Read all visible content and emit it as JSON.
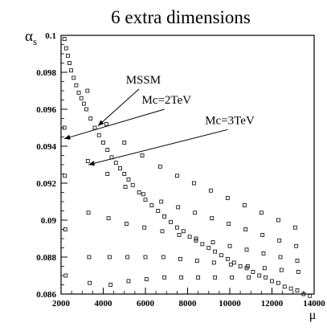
{
  "chart_data": {
    "type": "scatter",
    "title": "6 extra dimensions",
    "xlabel": "μ",
    "ylabel": "α",
    "ylabel_subscript": "s",
    "xlim": [
      2000,
      14000
    ],
    "ylim": [
      0.086,
      0.1
    ],
    "x_ticks": [
      "2000",
      "4000",
      "6000",
      "8000",
      "10000",
      "12000",
      "14000"
    ],
    "y_ticks": [
      "0.086",
      "0.088",
      "0.09",
      "0.092",
      "0.094",
      "0.096",
      "0.098",
      "0.1"
    ],
    "grid": false,
    "marker": "open-square",
    "series": [
      {
        "name": "MSSM",
        "values": [
          [
            2160,
            0.0998
          ],
          [
            2240,
            0.0993
          ],
          [
            2320,
            0.0989
          ],
          [
            2400,
            0.0985
          ],
          [
            2480,
            0.0981
          ],
          [
            2600,
            0.0977
          ],
          [
            2720,
            0.0973
          ],
          [
            2840,
            0.0969
          ],
          [
            2960,
            0.0966
          ],
          [
            3080,
            0.0963
          ],
          [
            3200,
            0.096
          ],
          [
            3400,
            0.0955
          ],
          [
            3600,
            0.095
          ],
          [
            3800,
            0.0946
          ],
          [
            4000,
            0.0942
          ],
          [
            4200,
            0.0938
          ],
          [
            4400,
            0.0934
          ],
          [
            4600,
            0.0931
          ],
          [
            4800,
            0.0928
          ],
          [
            5000,
            0.0925
          ],
          [
            5200,
            0.0922
          ],
          [
            5400,
            0.0919
          ],
          [
            5700,
            0.0915
          ],
          [
            6000,
            0.0911
          ],
          [
            6300,
            0.0908
          ],
          [
            6600,
            0.0905
          ],
          [
            6900,
            0.0902
          ],
          [
            7200,
            0.0899
          ],
          [
            7500,
            0.0896
          ],
          [
            7800,
            0.0894
          ],
          [
            8100,
            0.0891
          ],
          [
            8400,
            0.0889
          ],
          [
            8700,
            0.0887
          ],
          [
            9000,
            0.0885
          ],
          [
            9300,
            0.0883
          ],
          [
            9600,
            0.0881
          ],
          [
            9900,
            0.0879
          ],
          [
            10200,
            0.0877
          ],
          [
            10500,
            0.0875
          ],
          [
            10800,
            0.0874
          ],
          [
            11100,
            0.0872
          ],
          [
            11400,
            0.087
          ],
          [
            11700,
            0.0869
          ],
          [
            12000,
            0.0867
          ],
          [
            12300,
            0.0866
          ],
          [
            12600,
            0.0864
          ],
          [
            12900,
            0.0863
          ],
          [
            13200,
            0.0862
          ],
          [
            13500,
            0.086
          ],
          [
            13800,
            0.0859
          ]
        ]
      },
      {
        "name": "",
        "values": [
          [
            2160,
            0.095
          ],
          [
            2180,
            0.0924
          ],
          [
            2200,
            0.0895
          ],
          [
            2220,
            0.087
          ],
          [
            3250,
            0.097
          ],
          [
            3270,
            0.0932
          ],
          [
            3300,
            0.0904
          ],
          [
            3330,
            0.088
          ],
          [
            3360,
            0.0866
          ],
          [
            4150,
            0.0952
          ],
          [
            4200,
            0.0925
          ],
          [
            4250,
            0.0901
          ],
          [
            4300,
            0.088
          ],
          [
            4350,
            0.0865
          ],
          [
            5000,
            0.0942
          ],
          [
            5050,
            0.0918
          ],
          [
            5100,
            0.0898
          ],
          [
            5150,
            0.088
          ],
          [
            5200,
            0.0867
          ],
          [
            5850,
            0.0935
          ],
          [
            5900,
            0.0914
          ],
          [
            5950,
            0.0896
          ],
          [
            6000,
            0.088
          ],
          [
            6050,
            0.0868
          ],
          [
            6700,
            0.0929
          ],
          [
            6750,
            0.091
          ],
          [
            6800,
            0.0894
          ],
          [
            6850,
            0.088
          ],
          [
            6900,
            0.0869
          ],
          [
            7500,
            0.0924
          ],
          [
            7550,
            0.0907
          ],
          [
            7600,
            0.0892
          ],
          [
            7650,
            0.0879
          ],
          [
            7700,
            0.0869
          ],
          [
            8300,
            0.092
          ],
          [
            8350,
            0.0904
          ],
          [
            8400,
            0.089
          ],
          [
            8450,
            0.0878
          ],
          [
            8500,
            0.0869
          ],
          [
            9100,
            0.0916
          ],
          [
            9150,
            0.0901
          ],
          [
            9200,
            0.0888
          ],
          [
            9250,
            0.0877
          ],
          [
            9300,
            0.0869
          ],
          [
            9900,
            0.0912
          ],
          [
            9950,
            0.0898
          ],
          [
            10000,
            0.0886
          ],
          [
            10050,
            0.0876
          ],
          [
            10100,
            0.0869
          ],
          [
            10700,
            0.0908
          ],
          [
            10750,
            0.0895
          ],
          [
            10800,
            0.0884
          ],
          [
            10850,
            0.0875
          ],
          [
            10900,
            0.0869
          ],
          [
            11500,
            0.0904
          ],
          [
            11550,
            0.0892
          ],
          [
            11600,
            0.0882
          ],
          [
            11650,
            0.0874
          ],
          [
            12300,
            0.09
          ],
          [
            12350,
            0.0889
          ],
          [
            12400,
            0.088
          ],
          [
            12450,
            0.0873
          ],
          [
            13100,
            0.0896
          ],
          [
            13150,
            0.0886
          ],
          [
            13200,
            0.0878
          ],
          [
            13250,
            0.0872
          ]
        ]
      }
    ],
    "annotations": [
      {
        "text": "MSSM",
        "text_at": [
          5900,
          0.0974
        ],
        "arrow_from": [
          5700,
          0.0971
        ],
        "arrow_to": [
          3750,
          0.0951
        ]
      },
      {
        "text": "Mc=2TeV",
        "text_at": [
          7000,
          0.0963
        ],
        "arrow_from": [
          6900,
          0.096
        ],
        "arrow_to": [
          2150,
          0.0944
        ]
      },
      {
        "text": "Mc=3TeV",
        "text_at": [
          10000,
          0.0952
        ],
        "arrow_from": [
          9900,
          0.0949
        ],
        "arrow_to": [
          3300,
          0.093
        ]
      }
    ]
  }
}
